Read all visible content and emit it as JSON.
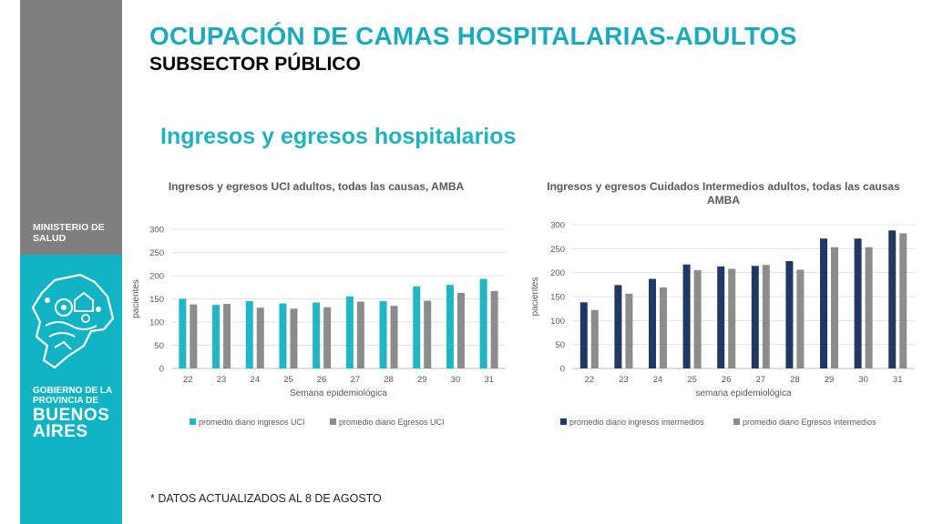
{
  "header": {
    "title": "OCUPACIÓN DE CAMAS HOSPITALARIAS-ADULTOS",
    "subtitle": "SUBSECTOR PÚBLICO"
  },
  "sidebar": {
    "ministry_line1": "MINISTERIO DE",
    "ministry_line2": "SALUD",
    "gov_line1": "GOBIERNO DE LA",
    "gov_line2": "PROVINCIA DE",
    "ba_line1": "BUENOS",
    "ba_line2": "AIRES"
  },
  "section_title": "Ingresos y egresos hospitalarios",
  "footnote": "* DATOS ACTUALIZADOS AL 8 DE AGOSTO",
  "colors": {
    "teal": "#1fb6c6",
    "navy": "#1f3864",
    "gray": "#8c8c8c"
  },
  "chart_data": [
    {
      "type": "bar",
      "title": "Ingresos y egresos UCI adultos, todas las causas, AMBA",
      "xlabel": "Semana epidemiológica",
      "ylabel": "pacientes",
      "ylim": [
        0,
        300
      ],
      "yticks": [
        "0",
        "50",
        "100",
        "150",
        "200",
        "250",
        "300"
      ],
      "categories": [
        "22",
        "23",
        "24",
        "25",
        "26",
        "27",
        "28",
        "29",
        "30",
        "31"
      ],
      "grid": true,
      "legend": "bottom",
      "series": [
        {
          "name": "promedio diario ingresos UCI",
          "color": "#1fb6c6",
          "values": [
            150,
            137,
            145,
            140,
            142,
            155,
            145,
            177,
            180,
            193
          ]
        },
        {
          "name": "promedio diario Egresos UCI",
          "color": "#8c8c8c",
          "values": [
            138,
            139,
            131,
            129,
            132,
            144,
            135,
            146,
            163,
            167
          ]
        }
      ]
    },
    {
      "type": "bar",
      "title_lines": [
        "Ingresos y egresos Cuidados Intermedios adultos, todas las causas",
        "AMBA"
      ],
      "xlabel": "semana epidemiológica",
      "ylabel": "pacientes",
      "ylim": [
        0,
        300
      ],
      "yticks": [
        "0",
        "50",
        "100",
        "150",
        "200",
        "250",
        "300"
      ],
      "categories": [
        "22",
        "23",
        "24",
        "25",
        "26",
        "27",
        "28",
        "29",
        "30",
        "31"
      ],
      "grid": true,
      "legend": "bottom",
      "series": [
        {
          "name": "promedio diario ingresos intermedios",
          "color": "#1f3864",
          "values": [
            138,
            174,
            187,
            217,
            213,
            214,
            224,
            271,
            271,
            288
          ]
        },
        {
          "name": "promedio diario Egresos intermedios",
          "color": "#8c8c8c",
          "values": [
            122,
            156,
            169,
            205,
            208,
            216,
            206,
            253,
            253,
            282
          ]
        }
      ]
    }
  ]
}
